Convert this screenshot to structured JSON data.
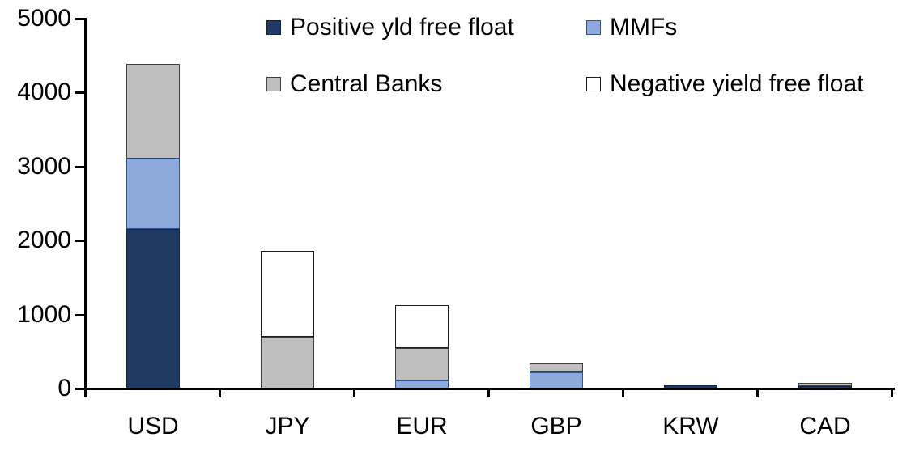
{
  "chart_data": {
    "type": "bar",
    "stacked": true,
    "title": "",
    "xlabel": "",
    "ylabel": "",
    "categories": [
      "USD",
      "JPY",
      "EUR",
      "GBP",
      "KRW",
      "CAD"
    ],
    "series": [
      {
        "name": "Positive yld free float",
        "color": "#203A63",
        "border_color": "#16233C",
        "values": [
          2160,
          0,
          0,
          0,
          40,
          30
        ]
      },
      {
        "name": "MMFs",
        "color": "#8EAADC",
        "border_color": "#2F5597",
        "values": [
          945,
          0,
          110,
          215,
          0,
          0
        ]
      },
      {
        "name": "Central Banks",
        "color": "#BFBFBF",
        "border_color": "#3F3F3F",
        "values": [
          1285,
          700,
          435,
          120,
          0,
          45
        ]
      },
      {
        "name": "Negative yield free float",
        "color": "#FFFFFF",
        "border_color": "#1A1A1A",
        "values": [
          0,
          1160,
          580,
          0,
          0,
          0
        ]
      }
    ],
    "totals": [
      4390,
      1860,
      1125,
      335,
      40,
      75
    ],
    "ylim": [
      0,
      5000
    ],
    "yticks": [
      0,
      1000,
      2000,
      3000,
      4000,
      5000
    ],
    "grid": false,
    "legend_position": "top-rows",
    "axis_color": "#000000",
    "background_color": "#FFFFFF"
  }
}
